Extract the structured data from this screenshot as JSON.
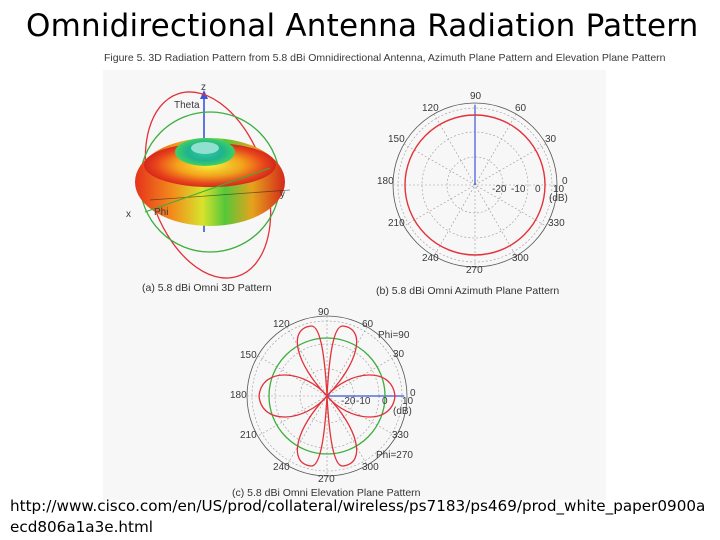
{
  "slide": {
    "title": "Omnidirectional Antenna Radiation Pattern",
    "source_url_line1": "http://www.cisco.com/en/US/prod/collateral/wireless/ps7183/ps469/prod_white_paper0900a",
    "source_url_line2": "ecd806a1a3e.html"
  },
  "figure": {
    "caption": "Figure 5. 3D Radiation Pattern from 5.8 dBi Omnidirectional Antenna, Azimuth Plane Pattern and Elevation Plane Pattern",
    "panel_a": {
      "caption": "(a) 5.8 dBi Omni 3D Pattern",
      "axis_labels": [
        "z",
        "Theta",
        "y",
        "x",
        "Phi"
      ]
    },
    "panel_b": {
      "caption": "(b) 5.8 dBi Omni Azimuth Plane Pattern",
      "angle_labels": [
        "90",
        "60",
        "30",
        "0",
        "330",
        "300",
        "270",
        "240",
        "210",
        "180",
        "150",
        "120"
      ],
      "ring_labels": [
        "-20",
        "-10",
        "0",
        "10",
        "(dB)"
      ]
    },
    "panel_c": {
      "caption": "(c) 5.8 dBi Omni Elevation Plane Pattern",
      "angle_labels": [
        "90",
        "60",
        "30",
        "0",
        "330",
        "300",
        "270",
        "240",
        "210",
        "180",
        "150",
        "120"
      ],
      "ring_labels": [
        "-20",
        "-10",
        "0",
        "10",
        "(dB)"
      ],
      "legend": [
        "Phi=90",
        "Phi=270"
      ]
    },
    "colors": {
      "pattern": "#e2323a",
      "reference_circle": "#3cae3c",
      "axis": "#3b55d9",
      "grid": "#9a9a9a"
    }
  }
}
